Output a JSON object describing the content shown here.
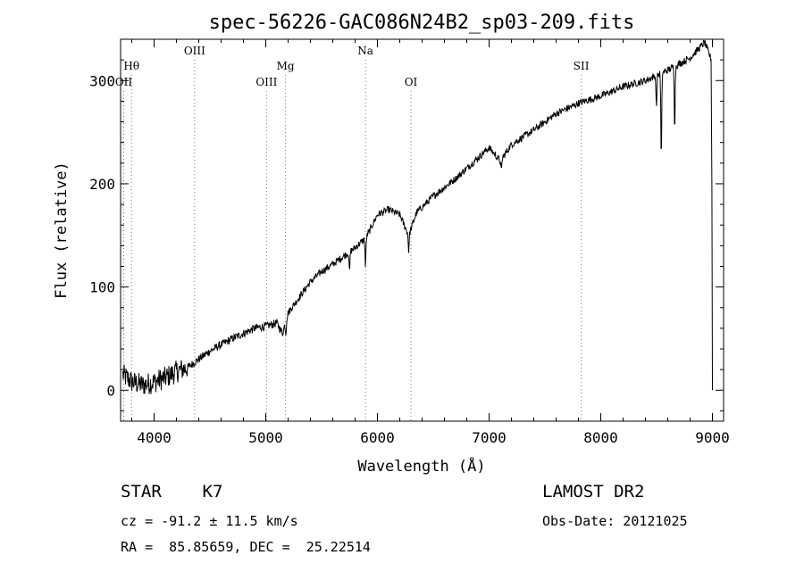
{
  "chart_data": {
    "type": "line",
    "title": "spec-56226-GAC086N24B2_sp03-209.fits",
    "xlabel": "Wavelength (Å)",
    "ylabel": "Flux (relative)",
    "xlim": [
      3700,
      9100
    ],
    "ylim": [
      -30,
      340
    ],
    "xticks": [
      4000,
      5000,
      6000,
      7000,
      8000,
      9000
    ],
    "yticks": [
      0,
      100,
      200,
      300
    ],
    "spectrum_anchors": [
      {
        "x": 3720,
        "y": 15
      },
      {
        "x": 3800,
        "y": 8
      },
      {
        "x": 3900,
        "y": 5
      },
      {
        "x": 4000,
        "y": 8
      },
      {
        "x": 4100,
        "y": 12
      },
      {
        "x": 4200,
        "y": 18
      },
      {
        "x": 4300,
        "y": 22
      },
      {
        "x": 4400,
        "y": 30
      },
      {
        "x": 4500,
        "y": 38
      },
      {
        "x": 4600,
        "y": 44
      },
      {
        "x": 4700,
        "y": 50
      },
      {
        "x": 4800,
        "y": 55
      },
      {
        "x": 4900,
        "y": 60
      },
      {
        "x": 5000,
        "y": 62
      },
      {
        "x": 5100,
        "y": 65
      },
      {
        "x": 5150,
        "y": 55
      },
      {
        "x": 5200,
        "y": 75
      },
      {
        "x": 5300,
        "y": 90
      },
      {
        "x": 5400,
        "y": 105
      },
      {
        "x": 5500,
        "y": 115
      },
      {
        "x": 5600,
        "y": 122
      },
      {
        "x": 5700,
        "y": 130
      },
      {
        "x": 5800,
        "y": 138
      },
      {
        "x": 5900,
        "y": 148
      },
      {
        "x": 6000,
        "y": 170
      },
      {
        "x": 6100,
        "y": 175
      },
      {
        "x": 6200,
        "y": 170
      },
      {
        "x": 6280,
        "y": 150
      },
      {
        "x": 6350,
        "y": 172
      },
      {
        "x": 6500,
        "y": 188
      },
      {
        "x": 6700,
        "y": 205
      },
      {
        "x": 6900,
        "y": 225
      },
      {
        "x": 7000,
        "y": 235
      },
      {
        "x": 7100,
        "y": 222
      },
      {
        "x": 7200,
        "y": 238
      },
      {
        "x": 7400,
        "y": 252
      },
      {
        "x": 7600,
        "y": 268
      },
      {
        "x": 7800,
        "y": 278
      },
      {
        "x": 8000,
        "y": 285
      },
      {
        "x": 8200,
        "y": 294
      },
      {
        "x": 8400,
        "y": 300
      },
      {
        "x": 8600,
        "y": 310
      },
      {
        "x": 8800,
        "y": 322
      },
      {
        "x": 8930,
        "y": 337
      },
      {
        "x": 8990,
        "y": 320
      }
    ],
    "absorption_dips": [
      {
        "x": 5180,
        "depth": 12
      },
      {
        "x": 5750,
        "depth": 20
      },
      {
        "x": 5893,
        "depth": 28
      },
      {
        "x": 6280,
        "depth": 15
      },
      {
        "x": 7110,
        "depth": 12
      },
      {
        "x": 8498,
        "depth": 30
      },
      {
        "x": 8542,
        "depth": 85
      },
      {
        "x": 8662,
        "depth": 60
      }
    ],
    "line_markers": [
      {
        "label": "Hθ",
        "x": 3798,
        "row": "mid"
      },
      {
        "label": "OII",
        "x": 3728,
        "row": "low"
      },
      {
        "label": "OIII",
        "x": 4363,
        "row": "top"
      },
      {
        "label": "OIII",
        "x": 5007,
        "row": "low"
      },
      {
        "label": "Mg",
        "x": 5177,
        "row": "mid"
      },
      {
        "label": "Na",
        "x": 5893,
        "row": "top"
      },
      {
        "label": "OI",
        "x": 6300,
        "row": "low"
      },
      {
        "label": "SII",
        "x": 7825,
        "row": "mid"
      }
    ]
  },
  "info": {
    "class": "STAR    K7",
    "survey": "LAMOST DR2",
    "cz": "cz = -91.2 ± 11.5 km/s",
    "obs_date": "Obs-Date: 20121025",
    "coords": "RA =  85.85659, DEC =  25.22514"
  }
}
